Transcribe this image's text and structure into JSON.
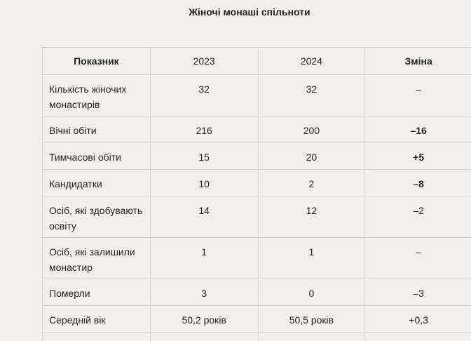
{
  "title": "Жіночі монаші спільноти",
  "table": {
    "headers": [
      "Показник",
      "2023",
      "2024",
      "Зміна"
    ],
    "rows": [
      {
        "label": "Кількість жіночих монастирів",
        "y2023": "32",
        "y2024": "32",
        "change": "–"
      },
      {
        "label": "Вічні обіти",
        "y2023": "216",
        "y2024": "200",
        "change": "–16"
      },
      {
        "label": "Тимчасові обіти",
        "y2023": "15",
        "y2024": "20",
        "change": "+5"
      },
      {
        "label": "Кандидатки",
        "y2023": "10",
        "y2024": "2",
        "change": "–8"
      },
      {
        "label": "Осіб, які здобувають освіту",
        "y2023": "14",
        "y2024": "12",
        "change": "–2"
      },
      {
        "label": "Осіб, які залишили монастир",
        "y2023": "1",
        "y2024": "1",
        "change": "–"
      },
      {
        "label": "Померли",
        "y2023": "3",
        "y2024": "0",
        "change": "–3"
      },
      {
        "label": "Середній вік",
        "y2023": "50,2 років",
        "y2024": "50,5 років",
        "change": "+0,3"
      }
    ]
  }
}
